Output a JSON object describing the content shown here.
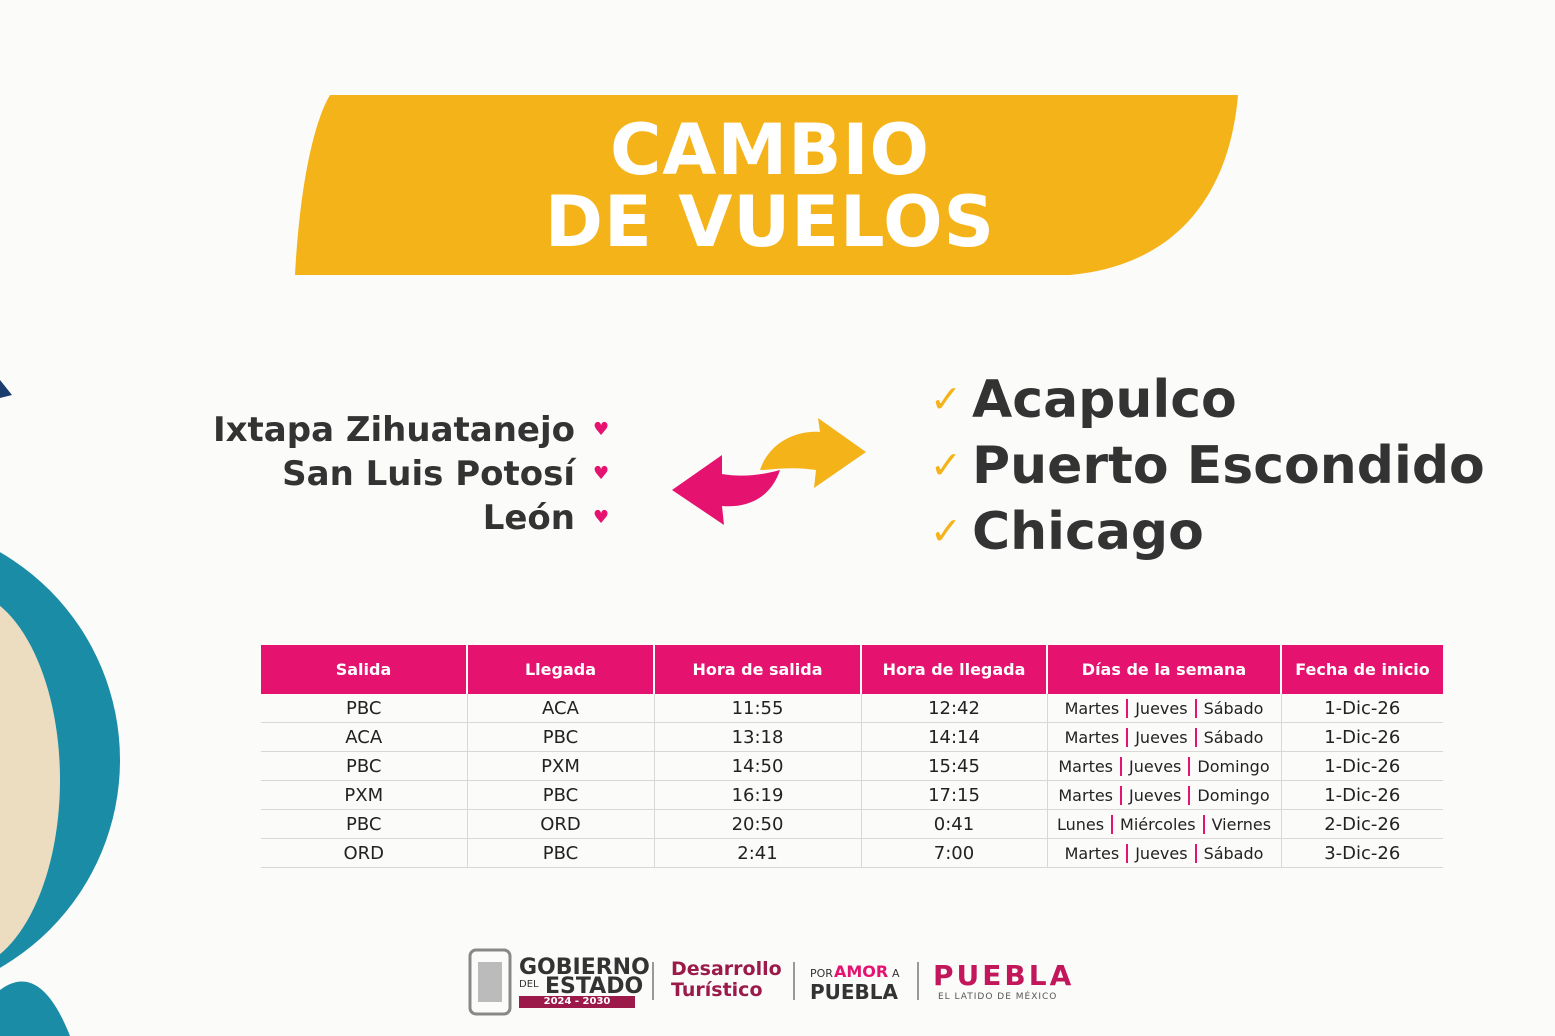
{
  "header": {
    "title_lines": [
      "CAMBIO",
      "DE VUELOS"
    ]
  },
  "origins": [
    "Ixtapa Zihuatanejo",
    "San Luis Potosí",
    "León"
  ],
  "destinations": [
    "Acapulco",
    "Puerto Escondido",
    "Chicago"
  ],
  "table": {
    "headers": [
      "Salida",
      "Llegada",
      "Hora de salida",
      "Hora de llegada",
      "Días de la semana",
      "Fecha de inicio"
    ],
    "rows": [
      [
        "PBC",
        "ACA",
        "11:55",
        "12:42",
        [
          "Martes",
          "Jueves",
          "Sábado"
        ],
        "1-Dic-26"
      ],
      [
        "ACA",
        "PBC",
        "13:18",
        "14:14",
        [
          "Martes",
          "Jueves",
          "Sábado"
        ],
        "1-Dic-26"
      ],
      [
        "PBC",
        "PXM",
        "14:50",
        "15:45",
        [
          "Martes",
          "Jueves",
          "Domingo"
        ],
        "1-Dic-26"
      ],
      [
        "PXM",
        "PBC",
        "16:19",
        "17:15",
        [
          "Martes",
          "Jueves",
          "Domingo"
        ],
        "1-Dic-26"
      ],
      [
        "PBC",
        "ORD",
        "20:50",
        "0:41",
        [
          "Lunes",
          "Miércoles",
          "Viernes"
        ],
        "2-Dic-26"
      ],
      [
        "ORD",
        "PBC",
        "2:41",
        "7:00",
        [
          "Martes",
          "Jueves",
          "Sábado"
        ],
        "3-Dic-26"
      ]
    ]
  },
  "footer": {
    "gobierno": [
      "GOBIERNO",
      "DEL",
      "ESTADO",
      "2024 - 2030"
    ],
    "desarrollo": [
      "Desarrollo",
      "Turístico"
    ],
    "por_amor": [
      "POR",
      "AMOR",
      "A",
      "PUEBLA"
    ],
    "puebla": [
      "PUEBLA",
      "EL LATIDO DE MÉXICO"
    ]
  }
}
